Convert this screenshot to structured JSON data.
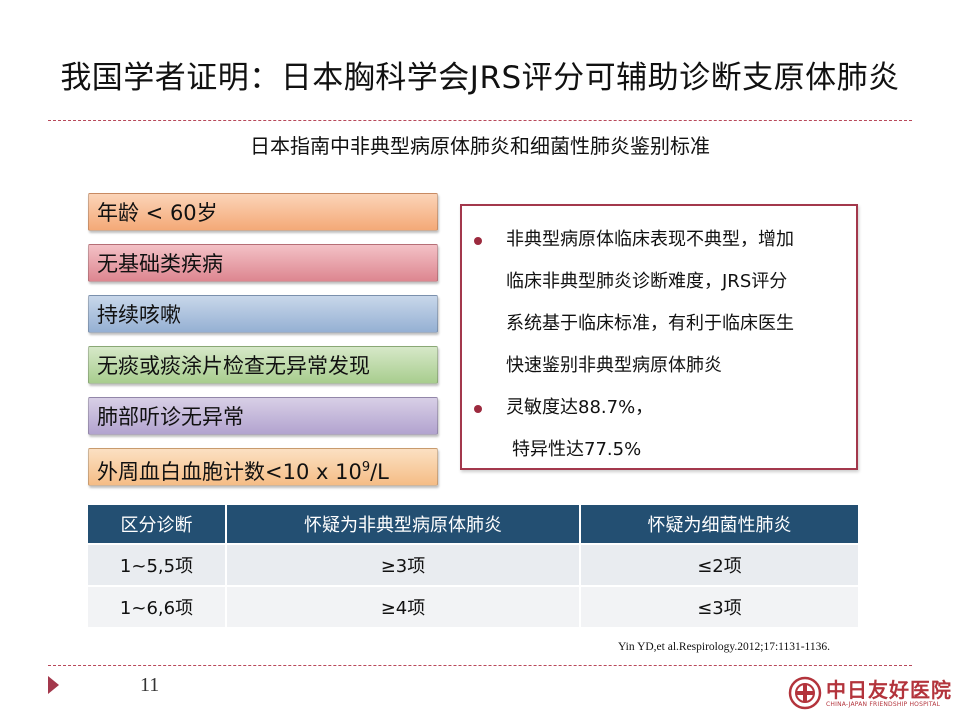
{
  "title": "我国学者证明：日本胸科学会JRS评分可辅助诊断支原体肺炎",
  "subtitle": "日本指南中非典型病原体肺炎和细菌性肺炎鉴别标准",
  "criteria": [
    {
      "text": "年龄 < 60岁"
    },
    {
      "text": "无基础类疾病"
    },
    {
      "text": "持续咳嗽"
    },
    {
      "text": "无痰或痰涂片检查无异常发现"
    },
    {
      "text": "肺部听诊无异常"
    },
    {
      "text": "外周血白血胞计数<10 x 10",
      "sup": "9",
      "suffix": "/L"
    }
  ],
  "notes": {
    "lines": [
      "非典型病原体临床表现不典型，增加",
      "临床非典型肺炎诊断难度，JRS评分",
      "系统基于临床标准，有利于临床医生",
      "快速鉴别非典型病原体肺炎",
      "灵敏度达88.7%，",
      "特异性达77.5%"
    ]
  },
  "table": {
    "headers": [
      "区分诊断",
      "怀疑为非典型病原体肺炎",
      "怀疑为细菌性肺炎"
    ],
    "rows": [
      [
        "1~5,5项",
        "≥3项",
        "≤2项"
      ],
      [
        "1~6,6项",
        "≥4项",
        "≤3项"
      ]
    ]
  },
  "citation": "Yin YD,et al.Respirology.2012;17:1131-1136.",
  "page_number": "11",
  "logo": {
    "name_cn": "中日友好医院",
    "name_en": "CHINA-JAPAN FRIENDSHIP HOSPITAL"
  },
  "colors": {
    "accent": "#a3384c",
    "table_header": "#234f72"
  }
}
